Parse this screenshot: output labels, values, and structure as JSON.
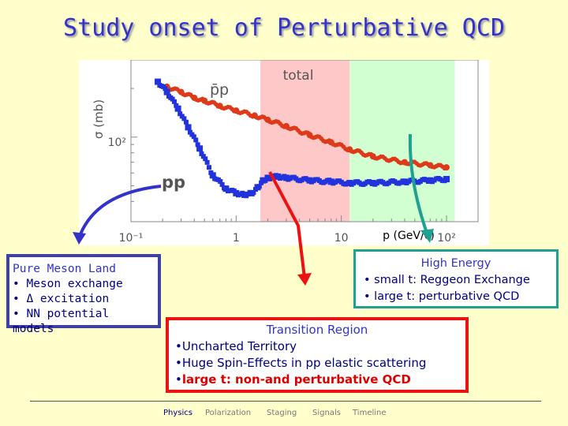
{
  "title": "Study onset of Perturbative QCD",
  "chart_data": {
    "type": "scatter",
    "xscale": "log",
    "yscale": "log",
    "xlabel": "p (GeV/c)",
    "ylabel": "σ (mb)",
    "x_tick_labels": [
      "10⁻¹",
      "1",
      "10",
      "10²"
    ],
    "y_tick_labels": [
      "10²"
    ],
    "regions": [
      {
        "color": "#ffffff",
        "xrange": [
          0.1,
          1.7
        ]
      },
      {
        "color": "#ffc8c8",
        "xrange": [
          1.7,
          12
        ]
      },
      {
        "color": "#d2ffd2",
        "xrange": [
          12,
          120
        ]
      }
    ],
    "annotations": [
      "total",
      "p̄p",
      "pp"
    ],
    "series": [
      {
        "name": "p̄p",
        "color": "#dd3a1a",
        "x": [
          0.22,
          0.3,
          0.4,
          0.5,
          0.7,
          1.0,
          1.5,
          2.0,
          3.0,
          5.0,
          8.0,
          12.0,
          20.0,
          40.0,
          70.0,
          100.0
        ],
        "y": [
          205,
          190,
          175,
          168,
          156,
          146,
          136,
          128,
          117,
          103,
          93,
          84,
          76,
          70,
          67,
          65
        ]
      },
      {
        "name": "pp",
        "color": "#2233dd",
        "x": [
          0.18,
          0.22,
          0.28,
          0.35,
          0.45,
          0.6,
          0.8,
          1.0,
          1.2,
          1.4,
          1.6,
          1.8,
          2.0,
          2.5,
          3.0,
          5.0,
          8.0,
          12.0,
          20.0,
          40.0,
          70.0,
          100.0
        ],
        "y": [
          220,
          190,
          150,
          115,
          85,
          58,
          48,
          45,
          44,
          45,
          49,
          54,
          56,
          57,
          56,
          54,
          53,
          52,
          52,
          53,
          54,
          55
        ]
      }
    ]
  },
  "boxes": {
    "left": {
      "head": "Pure Meson Land",
      "items": [
        "• Meson exchange",
        "• Δ excitation",
        "• NN potential models"
      ]
    },
    "right": {
      "head": "High Energy",
      "items": [
        "• small t: Reggeon Exchange",
        "• large t: perturbative QCD"
      ]
    },
    "mid": {
      "head": "Transition Region",
      "items": [
        "•Uncharted Territory",
        "•Huge Spin-Effects in pp elastic scattering"
      ],
      "last_prefix": "•",
      "last_red": "large t: non-and perturbative QCD"
    }
  },
  "nav": [
    {
      "label": "Physics",
      "active": true
    },
    {
      "label": "Polarization",
      "active": false
    },
    {
      "label": "Staging",
      "active": false
    },
    {
      "label": "Signals",
      "active": false
    },
    {
      "label": "Timeline",
      "active": false
    }
  ],
  "colors": {
    "arrow_blue": "#3333cc",
    "arrow_red": "#ee1111",
    "arrow_teal": "#20a090"
  }
}
